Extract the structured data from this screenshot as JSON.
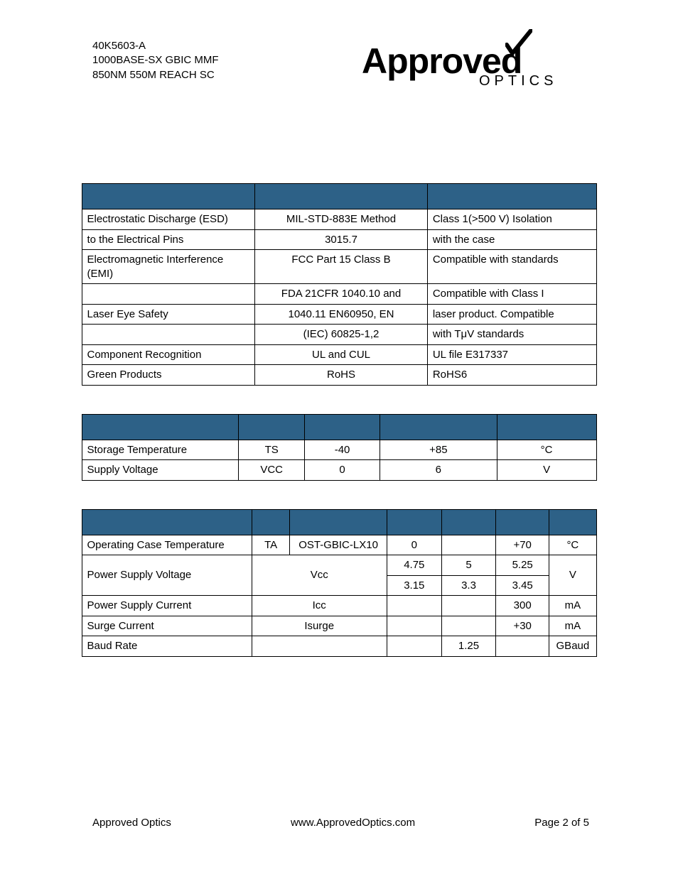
{
  "header": {
    "line1": "40K5603-A",
    "line2": "1000BASE-SX GBIC MMF",
    "line3": "850NM 550M REACH SC",
    "logo_main": "Approved",
    "logo_sub": "OPTICS"
  },
  "table1": {
    "header_bg": "#2d6187",
    "col_widths": [
      "244px",
      "243px",
      "238px"
    ],
    "rows": [
      [
        "Electrostatic Discharge (ESD)",
        "MIL-STD-883E Method",
        "Class 1(>500 V) Isolation"
      ],
      [
        "to the Electrical Pins",
        "3015.7",
        "with the case"
      ],
      [
        "Electromagnetic Interference (EMI)",
        "FCC Part 15 Class B",
        "Compatible with standards"
      ],
      [
        "",
        "FDA 21CFR 1040.10 and",
        "Compatible with Class I"
      ],
      [
        "Laser Eye Safety",
        "1040.11 EN60950, EN",
        "laser product. Compatible"
      ],
      [
        "",
        "(IEC) 60825-1,2",
        "with TμV standards"
      ],
      [
        "Component Recognition",
        "UL and CUL",
        "UL file E317337"
      ],
      [
        "Green Products",
        "RoHS",
        "RoHS6"
      ]
    ],
    "col2_align": [
      "c",
      "c",
      "c",
      "c",
      "c",
      "c",
      "c",
      "c"
    ]
  },
  "table2": {
    "col_widths": [
      "221px",
      "93px",
      "106px",
      "165px",
      "140px"
    ],
    "rows": [
      [
        "Storage Temperature",
        "TS",
        "-40",
        "+85",
        "°C"
      ],
      [
        "Supply Voltage",
        "VCC",
        "0",
        "6",
        "V"
      ]
    ]
  },
  "table3": {
    "col_widths": [
      "223px",
      "50px",
      "127px",
      "72px",
      "71px",
      "70px",
      "60px"
    ],
    "rows": [
      {
        "cells": [
          {
            "t": "Operating Case Temperature"
          },
          {
            "t": "TA",
            "a": "c"
          },
          {
            "t": "OST-GBIC-LX10",
            "a": "c"
          },
          {
            "t": "0",
            "a": "c"
          },
          {
            "t": ""
          },
          {
            "t": "+70",
            "a": "c"
          },
          {
            "t": "°C",
            "a": "c"
          }
        ]
      },
      {
        "cells": [
          {
            "t": "Power Supply Voltage",
            "rs": 2
          },
          {
            "t": "Vcc",
            "cs": 2,
            "a": "c",
            "rs": 2
          },
          {
            "t": "4.75",
            "a": "c"
          },
          {
            "t": "5",
            "a": "c"
          },
          {
            "t": "5.25",
            "a": "c"
          },
          {
            "t": "V",
            "rs": 2,
            "a": "c"
          }
        ]
      },
      {
        "cells": [
          {
            "t": "3.15",
            "a": "c"
          },
          {
            "t": "3.3",
            "a": "c"
          },
          {
            "t": "3.45",
            "a": "c"
          }
        ]
      },
      {
        "cells": [
          {
            "t": "Power Supply Current"
          },
          {
            "t": "Icc",
            "cs": 2,
            "a": "c"
          },
          {
            "t": ""
          },
          {
            "t": ""
          },
          {
            "t": "300",
            "a": "c"
          },
          {
            "t": "mA",
            "a": "c"
          }
        ]
      },
      {
        "cells": [
          {
            "t": "Surge Current"
          },
          {
            "t": "Isurge",
            "cs": 2,
            "a": "c"
          },
          {
            "t": ""
          },
          {
            "t": ""
          },
          {
            "t": "+30",
            "a": "c"
          },
          {
            "t": "mA",
            "a": "c"
          }
        ]
      },
      {
        "cells": [
          {
            "t": "Baud Rate"
          },
          {
            "t": "",
            "cs": 2
          },
          {
            "t": ""
          },
          {
            "t": "1.25",
            "a": "c"
          },
          {
            "t": ""
          },
          {
            "t": "GBaud",
            "a": "c"
          }
        ]
      }
    ]
  },
  "footer": {
    "left": "Approved Optics",
    "center": "www.ApprovedOptics.com",
    "right": "Page 2 of 5"
  }
}
